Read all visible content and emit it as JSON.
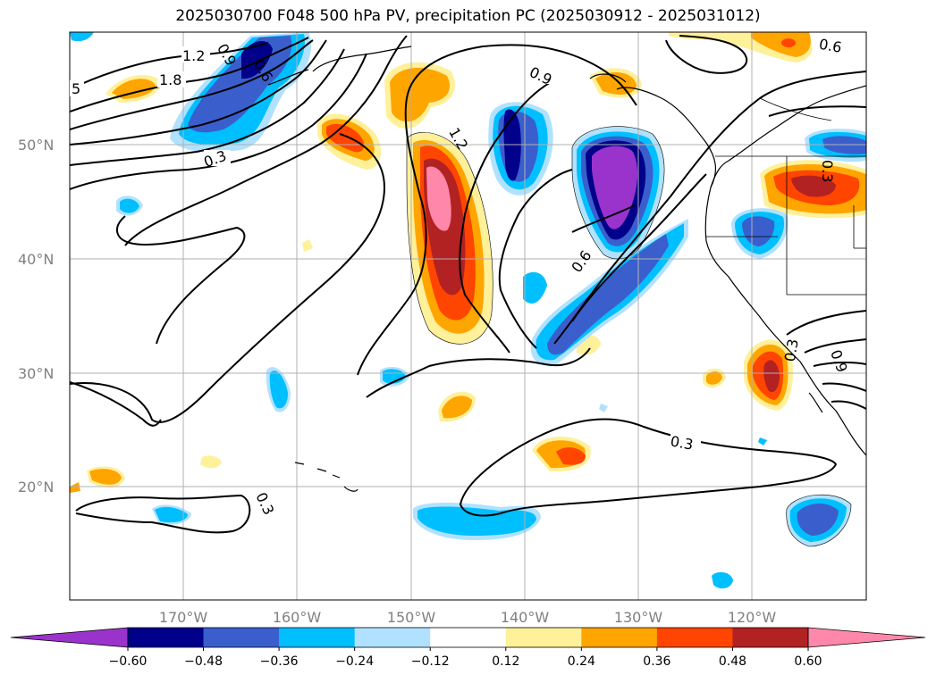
{
  "title": "2025030700 F048 500 hPa PV, precipitation PC (2025030912 - 2025031012)",
  "lat_labels": [
    "50°N",
    "40°N",
    "30°N",
    "20°N"
  ],
  "lon_labels": [
    "170°W",
    "160°W",
    "150°W",
    "140°W",
    "130°W",
    "120°W"
  ],
  "pv_contour_labels": [
    "5",
    "1.2",
    "1.8",
    "0.9",
    "0.6",
    "0.3",
    "0.9",
    "1.2",
    "0.6",
    "0.3",
    "0.3",
    "0.6",
    "0.3",
    "0.3",
    "0.9"
  ],
  "colorbar": {
    "ticks": [
      "−0.60",
      "−0.48",
      "−0.36",
      "−0.24",
      "−0.12",
      "0.12",
      "0.24",
      "0.36",
      "0.48",
      "0.60"
    ],
    "colors": [
      "#9933cc",
      "#00008b",
      "#3a5fcd",
      "#00bfff",
      "#b0e2ff",
      "#ffffff",
      "#fff09a",
      "#ffa500",
      "#ff4500",
      "#b22222",
      "#ff88aa"
    ]
  }
}
